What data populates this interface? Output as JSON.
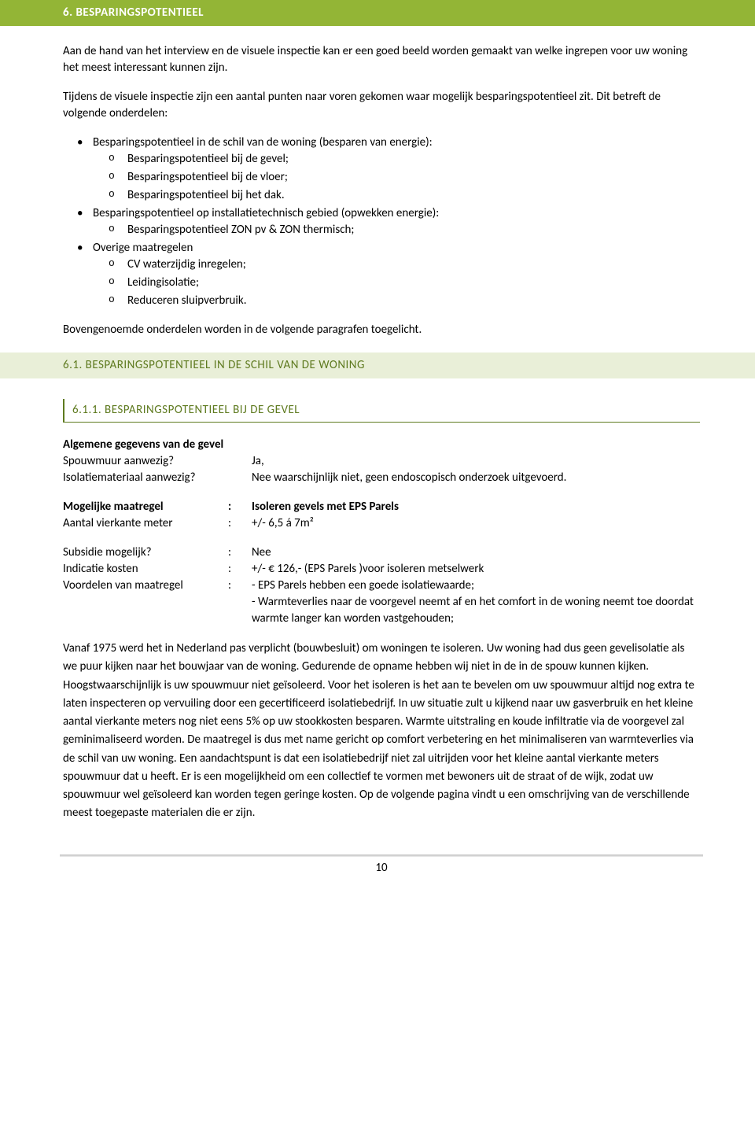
{
  "section6": {
    "title": "6. BESPARINGSPOTENTIEEL",
    "intro_p1": "Aan de hand van het interview en de visuele inspectie kan er een goed beeld worden gemaakt van welke ingrepen voor uw woning het meest interessant kunnen zijn.",
    "intro_p2": "Tijdens de visuele inspectie zijn een aantal punten naar voren gekomen waar mogelijk besparingspotentieel zit. Dit betreft de volgende onderdelen:",
    "bullets": [
      {
        "text": "Besparingspotentieel in de schil van de woning (besparen van energie):",
        "sub": [
          "Besparingspotentieel bij de gevel;",
          "Besparingspotentieel bij de vloer;",
          "Besparingspotentieel bij het dak."
        ]
      },
      {
        "text": "Besparingspotentieel op installatietechnisch gebied (opwekken energie):",
        "sub": [
          "Besparingspotentieel ZON pv & ZON thermisch;"
        ]
      },
      {
        "text": "Overige maatregelen",
        "sub": [
          "CV waterzijdig inregelen;",
          "Leidingisolatie;",
          "Reduceren sluipverbruik."
        ]
      }
    ],
    "closing": "Bovengenoemde onderdelen worden in de volgende paragrafen toegelicht."
  },
  "section61": {
    "title": "6.1. BESPARINGSPOTENTIEEL IN DE SCHIL VAN DE WONING"
  },
  "section611": {
    "title": "6.1.1. BESPARINGSPOTENTIEEL BIJ DE GEVEL",
    "gegevens_heading": "Algemene gegevens van de gevel",
    "spouwmuur_label": "Spouwmuur aanwezig?",
    "spouwmuur_value": "Ja,",
    "isolatie_label": "Isolatiemateriaal aanwezig?",
    "isolatie_value": "Nee waarschijnlijk niet, geen endoscopisch onderzoek uitgevoerd.",
    "maatregel_label": "Mogelijke maatregel",
    "maatregel_value": "Isoleren gevels met EPS Parels",
    "vierkante_label": "Aantal vierkante meter",
    "vierkante_value": "+/- 6,5 á 7m²",
    "subsidie_label": "Subsidie mogelijk?",
    "subsidie_value": "Nee",
    "kosten_label": "Indicatie kosten",
    "kosten_value": "+/- € 126,- (EPS Parels )voor isoleren metselwerk",
    "voordelen_label": "Voordelen van maatregel",
    "voordelen_value1": "- EPS Parels hebben een goede isolatiewaarde;",
    "voordelen_value2": "- Warmteverlies naar de voorgevel neemt af en het comfort in de woning neemt toe doordat warmte langer kan worden vastgehouden;",
    "body": "Vanaf 1975 werd het in Nederland pas verplicht (bouwbesluit) om woningen te isoleren. Uw woning had dus geen gevelisolatie als we puur kijken naar het bouwjaar van de woning. Gedurende de opname hebben wij niet in de in de spouw kunnen kijken. Hoogstwaarschijnlijk is uw spouwmuur niet geïsoleerd. Voor het isoleren is het aan te bevelen om uw spouwmuur altijd nog extra te laten inspecteren op vervuiling door een gecertificeerd isolatiebedrijf. In uw situatie zult u kijkend naar uw gasverbruik en het kleine aantal vierkante meters nog niet eens 5% op uw stookkosten besparen. Warmte uitstraling en koude infiltratie via de voorgevel zal geminimaliseerd worden. De maatregel is dus met name gericht op comfort verbetering en het minimaliseren van warmteverlies via de schil van uw woning. Een aandachtspunt is dat een isolatiebedrijf niet zal uitrijden voor het kleine aantal vierkante meters spouwmuur dat u heeft. Er is een mogelijkheid om een collectief te vormen met bewoners uit de straat of de wijk, zodat uw spouwmuur wel geïsoleerd kan worden tegen geringe kosten. Op de volgende pagina vindt u een omschrijving van de verschillende meest toegepaste materialen die er zijn."
  },
  "page_number": "10"
}
